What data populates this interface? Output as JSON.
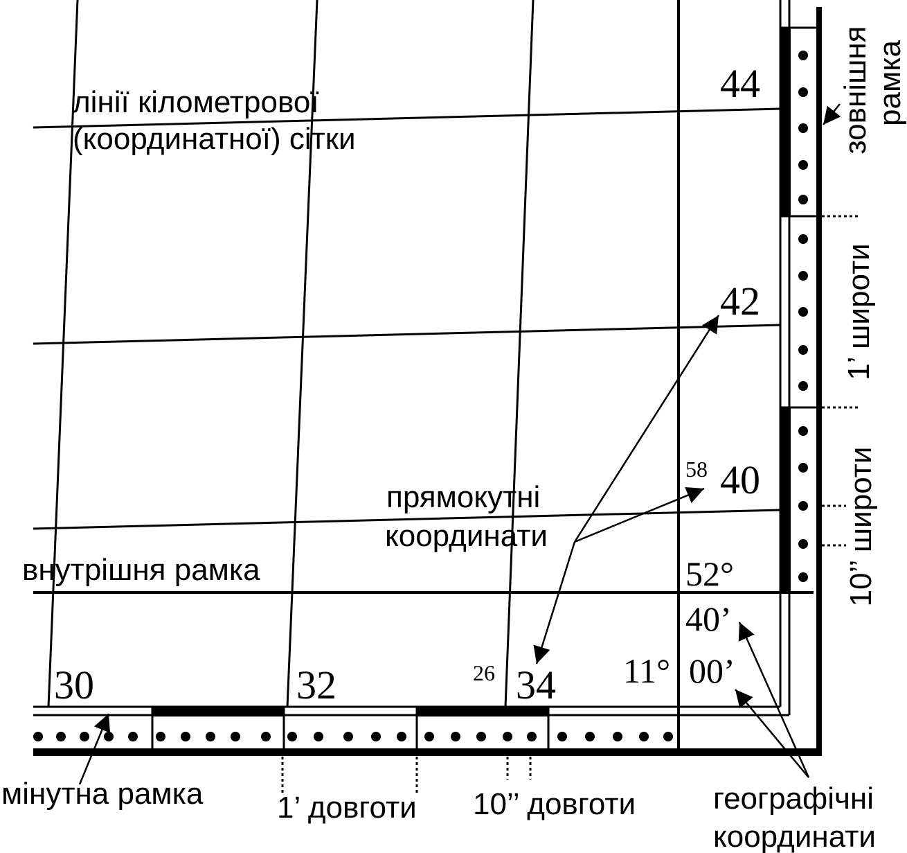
{
  "grid_lines_label": [
    "лінії кілометрової",
    "(координатної) сітки"
  ],
  "northings": [
    "44",
    "42",
    "40"
  ],
  "northing_prefix": "58",
  "eastings": [
    "30",
    "32",
    "34"
  ],
  "easting_prefix": "26",
  "outer_frame_label": [
    "зовнішня",
    "рамка"
  ],
  "latitude_minute_label": "1’ широти",
  "latitude_seconds_label": "10’’ широти",
  "rectangular_label": [
    "прямокутні",
    "координати"
  ],
  "inner_frame_label": "внутрішня рамка",
  "corner_latitude": [
    "52°",
    "40’"
  ],
  "corner_longitude": [
    "11°",
    "00’"
  ],
  "minute_frame_label": "мінутна рамка",
  "longitude_minute_label": "1’ довготи",
  "longitude_seconds_label": "10’’ довготи",
  "geographic_label": [
    "географічні",
    "координати"
  ]
}
